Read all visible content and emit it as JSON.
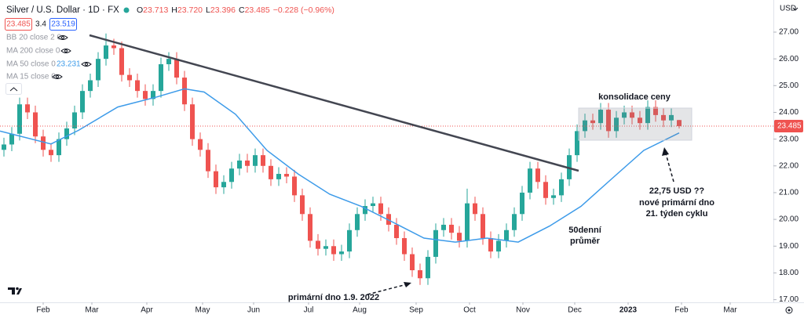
{
  "chart_data": {
    "type": "candlestick",
    "title": "Silver / U.S. Dollar · 1D · FX",
    "quote": {
      "open_label": "O",
      "open": 23.713,
      "high_label": "H",
      "high": 23.72,
      "low_label": "L",
      "low": 23.396,
      "close_label": "C",
      "close": 23.485,
      "change": "−0.228 (−0.96%)"
    },
    "quote_values_labels": {
      "high": "23.720"
    },
    "spread": {
      "bid": 23.485,
      "spread": 3.4,
      "ask": 23.519
    },
    "indicators": [
      {
        "text": "BB 20 close 2 0"
      },
      {
        "text": "MA 200 close 0"
      },
      {
        "text": "MA 50 close 0",
        "value": 23.231
      },
      {
        "text": "MA 15 close 0"
      }
    ],
    "currency": "USD",
    "categories": [
      null,
      null,
      null,
      null,
      null,
      null,
      null,
      null,
      null,
      null,
      null,
      null,
      null,
      null,
      null,
      null,
      null,
      null,
      null,
      null,
      null,
      null,
      null,
      null,
      null,
      null,
      null,
      null,
      null,
      null,
      null,
      null,
      null,
      null,
      null,
      null,
      null,
      null,
      null,
      null,
      null,
      null,
      null,
      null,
      null,
      null,
      null,
      null,
      null,
      null,
      null,
      null,
      null,
      null,
      null,
      null,
      null,
      null,
      null,
      null,
      null,
      null,
      null,
      null,
      null,
      null,
      null,
      null,
      null,
      null,
      null,
      null,
      null,
      null,
      null,
      null,
      null,
      null,
      null,
      null,
      null,
      null,
      null,
      null,
      null,
      null,
      null
    ],
    "open": [
      22.6,
      22.8,
      23.2,
      24.3,
      24.0,
      23.1,
      22.6,
      22.4,
      23.0,
      23.4,
      24.0,
      24.8,
      25.2,
      26.0,
      26.5,
      26.4,
      25.4,
      25.2,
      24.8,
      24.5,
      24.8,
      25.8,
      26.0,
      25.3,
      24.3,
      23.0,
      22.6,
      21.8,
      21.2,
      21.4,
      21.9,
      22.2,
      22.0,
      22.4,
      22.0,
      21.5,
      21.7,
      21.6,
      20.9,
      20.2,
      19.2,
      18.9,
      19.0,
      18.7,
      18.8,
      19.6,
      20.2,
      20.5,
      20.6,
      20.2,
      19.8,
      19.3,
      18.7,
      18.1,
      17.8,
      18.6,
      19.6,
      19.8,
      19.5,
      19.2,
      20.6,
      20.2,
      19.3,
      18.8,
      19.2,
      19.6,
      20.2,
      21.0,
      21.9,
      21.4,
      20.8,
      20.9,
      21.5,
      22.4,
      23.3,
      23.7,
      23.6,
      24.1,
      23.3,
      23.8,
      24.0,
      23.8,
      23.6,
      24.2,
      23.9,
      23.7,
      23.713
    ],
    "high": [
      23.05,
      23.45,
      24.55,
      24.55,
      24.25,
      23.35,
      22.85,
      23.25,
      23.65,
      24.25,
      25.05,
      25.45,
      26.25,
      26.95,
      26.75,
      26.65,
      25.65,
      25.45,
      25.05,
      25.05,
      26.05,
      26.25,
      26.25,
      25.55,
      24.55,
      23.25,
      22.85,
      22.05,
      21.65,
      22.15,
      22.45,
      22.45,
      22.65,
      22.65,
      22.25,
      21.95,
      21.95,
      21.85,
      21.15,
      20.45,
      19.45,
      19.25,
      19.25,
      19.05,
      19.85,
      20.45,
      20.75,
      20.85,
      20.85,
      20.45,
      20.05,
      19.55,
      18.95,
      18.35,
      18.85,
      19.85,
      20.05,
      20.05,
      19.75,
      21.15,
      20.85,
      20.45,
      19.55,
      19.45,
      19.85,
      20.45,
      21.25,
      22.15,
      22.15,
      21.65,
      21.15,
      21.75,
      22.65,
      23.55,
      23.95,
      23.95,
      24.35,
      24.35,
      24.05,
      24.25,
      24.25,
      24.05,
      24.45,
      24.45,
      24.15,
      24.15,
      23.72
    ],
    "low": [
      22.35,
      22.55,
      22.95,
      23.75,
      22.85,
      22.35,
      22.15,
      22.15,
      22.75,
      23.15,
      23.75,
      24.55,
      24.95,
      25.75,
      26.15,
      25.15,
      24.95,
      24.55,
      24.25,
      24.25,
      24.55,
      25.55,
      25.05,
      24.05,
      22.75,
      22.35,
      21.55,
      20.95,
      20.95,
      21.15,
      21.65,
      21.75,
      21.75,
      21.75,
      21.25,
      21.25,
      21.35,
      20.65,
      19.95,
      18.95,
      18.65,
      18.65,
      18.45,
      18.45,
      18.55,
      19.35,
      19.95,
      20.25,
      19.95,
      19.55,
      19.05,
      18.45,
      17.85,
      17.55,
      17.55,
      18.35,
      19.35,
      19.25,
      18.95,
      18.95,
      19.95,
      19.05,
      18.55,
      18.55,
      18.95,
      19.35,
      19.95,
      20.75,
      21.15,
      20.55,
      20.55,
      20.65,
      21.25,
      22.15,
      23.05,
      23.35,
      23.35,
      23.05,
      23.05,
      23.55,
      23.55,
      23.35,
      23.35,
      23.65,
      23.45,
      23.45,
      23.396
    ],
    "close": [
      22.8,
      23.2,
      24.3,
      24.0,
      23.1,
      22.6,
      22.4,
      23.0,
      23.4,
      24.0,
      24.8,
      25.2,
      26.0,
      26.5,
      26.4,
      25.4,
      25.2,
      24.8,
      24.5,
      24.8,
      25.8,
      26.0,
      25.3,
      24.3,
      23.0,
      22.6,
      21.8,
      21.2,
      21.4,
      21.9,
      22.2,
      22.0,
      22.4,
      22.0,
      21.5,
      21.7,
      21.6,
      20.9,
      20.2,
      19.2,
      18.9,
      19.0,
      18.7,
      18.8,
      19.6,
      20.2,
      20.5,
      20.6,
      20.2,
      19.8,
      19.3,
      18.7,
      18.1,
      17.8,
      18.6,
      19.6,
      19.8,
      19.5,
      19.2,
      20.6,
      20.2,
      19.3,
      18.8,
      19.2,
      19.6,
      20.2,
      21.0,
      21.9,
      21.4,
      20.8,
      20.9,
      21.5,
      22.4,
      23.3,
      23.7,
      23.6,
      24.1,
      23.3,
      23.8,
      24.0,
      23.8,
      23.6,
      24.2,
      23.9,
      23.7,
      23.9,
      23.485
    ],
    "up_color": "#26a69a",
    "down_color": "#ef5350",
    "ma": {
      "color": "#3d9be9",
      "x": [
        -0.5,
        6,
        9.5,
        14.5,
        19.5,
        23,
        25.5,
        29.5,
        33.5,
        37.5,
        41.5,
        45.5,
        49.5,
        53.5,
        57.5,
        61.5,
        65.5,
        69.5,
        73.5,
        77.5,
        81.5,
        86
      ],
      "values": [
        23.3,
        22.82,
        23.33,
        24.2,
        24.58,
        24.88,
        24.76,
        23.93,
        22.58,
        21.69,
        20.94,
        20.49,
        19.9,
        19.3,
        19.15,
        19.3,
        19.15,
        19.75,
        20.49,
        21.54,
        22.58,
        23.231
      ]
    },
    "last_price": 23.485,
    "xlim": [
      -0.5,
      98
    ],
    "ylim": [
      16.9,
      28.2
    ],
    "xticks": [
      {
        "value": 5,
        "label": "Feb"
      },
      {
        "value": 11.2,
        "label": "Mar"
      },
      {
        "value": 18.2,
        "label": "Apr"
      },
      {
        "value": 25.3,
        "label": "May"
      },
      {
        "value": 31.8,
        "label": "Jun"
      },
      {
        "value": 38.8,
        "label": "Jul"
      },
      {
        "value": 45.3,
        "label": "Aug"
      },
      {
        "value": 52.5,
        "label": "Sep"
      },
      {
        "value": 59.3,
        "label": "Oct"
      },
      {
        "value": 66.1,
        "label": "Nov"
      },
      {
        "value": 72.7,
        "label": "Dec"
      },
      {
        "value": 79.5,
        "label": "2023"
      },
      {
        "value": 86.3,
        "label": "Feb"
      },
      {
        "value": 92.5,
        "label": "Mar"
      }
    ],
    "yticks": [
      {
        "value": 17,
        "label": "17.00"
      },
      {
        "value": 18,
        "label": "18.00"
      },
      {
        "value": 19,
        "label": "19.00"
      },
      {
        "value": 20,
        "label": "20.00"
      },
      {
        "value": 21,
        "label": "21.00"
      },
      {
        "value": 22,
        "label": "22.00"
      },
      {
        "value": 23,
        "label": "23.00"
      },
      {
        "value": 24,
        "label": "24.00"
      },
      {
        "value": 25,
        "label": "25.00"
      },
      {
        "value": 26,
        "label": "26.00"
      },
      {
        "value": 27,
        "label": "27.00"
      }
    ],
    "annotations": {
      "consolidation": "konsolidace ceny",
      "target1": "22,75 USD ??",
      "target2": "nové primární dno",
      "target3": "21. týden cyklu",
      "ma1": "50denní",
      "ma2": "průměr",
      "low": "primární dno 1.9. 2022"
    }
  }
}
